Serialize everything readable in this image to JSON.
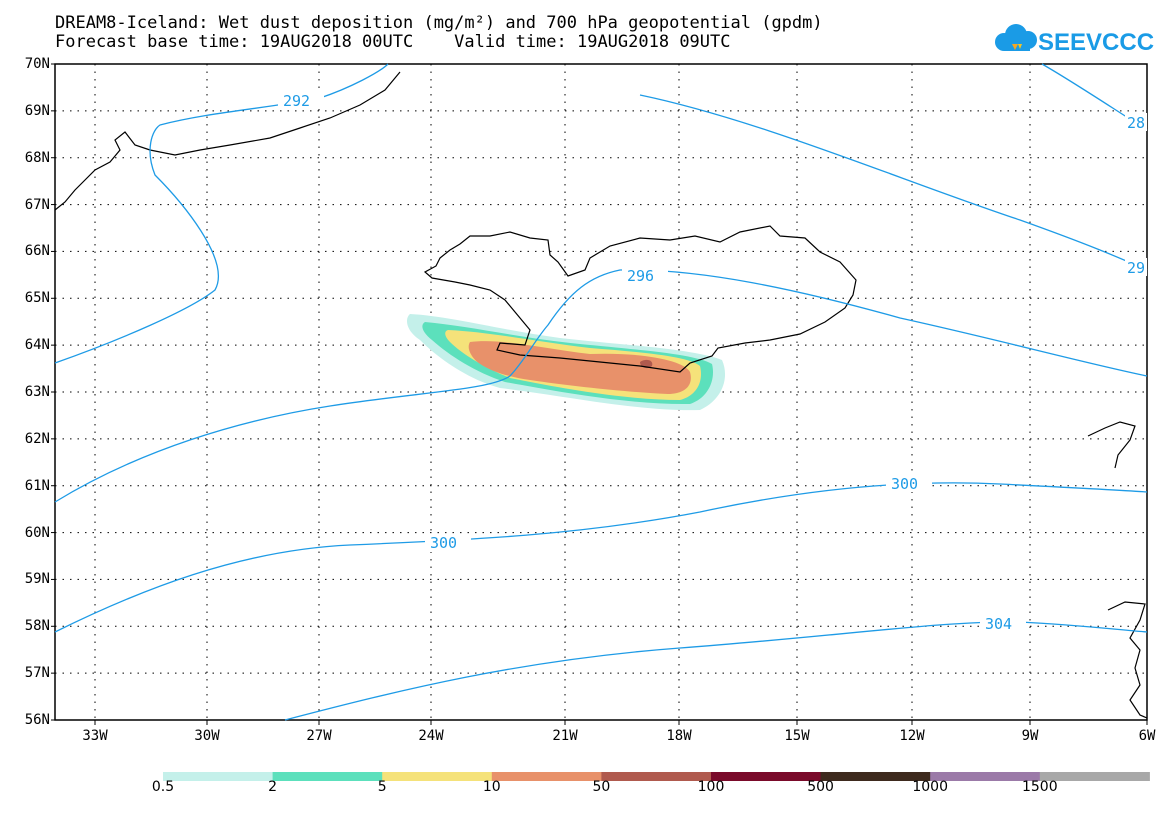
{
  "title": {
    "line1": "DREAM8-Iceland: Wet dust deposition (mg/m²) and 700 hPa geopotential (gpdm)",
    "line2": "Forecast base time: 19AUG2018 00UTC    Valid time: 19AUG2018 09UTC"
  },
  "logo": {
    "text": "SEEVCCC",
    "color": "#1a9be6"
  },
  "axes": {
    "lat_labels": [
      "70N",
      "69N",
      "68N",
      "67N",
      "66N",
      "65N",
      "64N",
      "63N",
      "62N",
      "61N",
      "60N",
      "59N",
      "58N",
      "57N",
      "56N"
    ],
    "lon_labels": [
      "33W",
      "30W",
      "27W",
      "24W",
      "21W",
      "18W",
      "15W",
      "12W",
      "9W",
      "6W"
    ]
  },
  "contour_labels": [
    "292",
    "296",
    "300",
    "300",
    "304",
    "28",
    "29"
  ],
  "legend": {
    "labels": [
      "0.5",
      "2",
      "5",
      "10",
      "50",
      "100",
      "500",
      "1000",
      "1500"
    ],
    "colors": [
      "#c4f0ea",
      "#5ce0bc",
      "#f5e27a",
      "#e8916a",
      "#b05a4e",
      "#7a0a2a",
      "#3e2a1e",
      "#9b7aa8",
      "#a8a8a8"
    ]
  },
  "colors": {
    "contour": "#1e9be6",
    "coast": "#000000"
  }
}
